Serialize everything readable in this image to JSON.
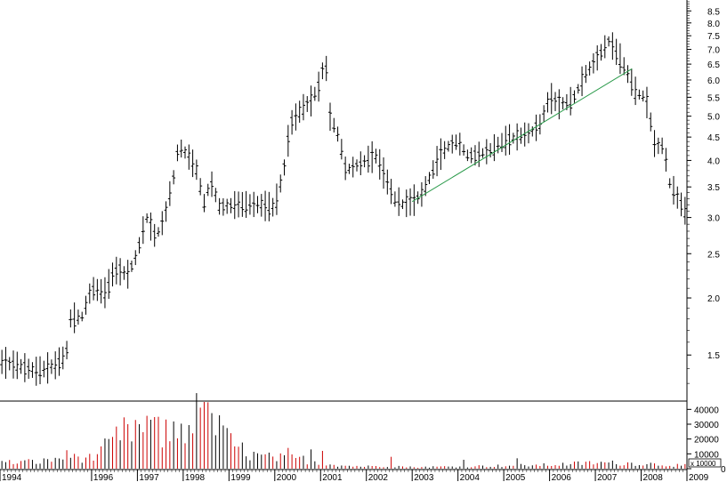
{
  "colors": {
    "background": "#ffffff",
    "price_bars": "#000000",
    "trendline": "#2a9a4a",
    "volume_bars": "#cc0000",
    "axis": "#000000"
  },
  "chart_data": [
    {
      "type": "ohlc",
      "scale": "log",
      "ylim": [
        1.2,
        8.9
      ],
      "xlim": [
        1994.0,
        2009.0
      ],
      "y_tick_labels": [
        "8.5",
        "8.0",
        "7.5",
        "7.0",
        "6.5",
        "6.0",
        "5.5",
        "5.0",
        "4.5",
        "4.0",
        "3.5",
        "3.0",
        "2.5",
        "2.0",
        "1.5"
      ],
      "y_tick_values": [
        8.5,
        8.0,
        7.5,
        7.0,
        6.5,
        6.0,
        5.5,
        5.0,
        4.5,
        4.0,
        3.5,
        3.0,
        2.5,
        2.0,
        1.5
      ],
      "x_tick_labels": [
        "1994",
        "1996",
        "1997",
        "1998",
        "1999",
        "2000",
        "2001",
        "2002",
        "2003",
        "2004",
        "2005",
        "2006",
        "2007",
        "2008",
        "2009"
      ],
      "x_tick_values": [
        1994,
        1996,
        1997,
        1998,
        1999,
        2000,
        2001,
        2002,
        2003,
        2004,
        2005,
        2006,
        2007,
        2008,
        2009
      ],
      "price_path": [
        [
          1994.0,
          1.45
        ],
        [
          1994.4,
          1.42
        ],
        [
          1994.8,
          1.38
        ],
        [
          1995.2,
          1.42
        ],
        [
          1995.45,
          1.5
        ],
        [
          1995.52,
          1.8
        ],
        [
          1995.8,
          1.82
        ],
        [
          1996.0,
          2.1
        ],
        [
          1996.3,
          2.05
        ],
        [
          1996.5,
          2.3
        ],
        [
          1996.8,
          2.25
        ],
        [
          1997.0,
          2.5
        ],
        [
          1997.2,
          3.0
        ],
        [
          1997.4,
          2.7
        ],
        [
          1997.6,
          3.0
        ],
        [
          1997.8,
          3.7
        ],
        [
          1997.9,
          4.3
        ],
        [
          1998.1,
          4.1
        ],
        [
          1998.3,
          3.8
        ],
        [
          1998.45,
          3.2
        ],
        [
          1998.6,
          3.6
        ],
        [
          1998.8,
          3.15
        ],
        [
          1999.2,
          3.2
        ],
        [
          1999.6,
          3.2
        ],
        [
          2000.0,
          3.15
        ],
        [
          2000.2,
          3.8
        ],
        [
          2000.35,
          4.8
        ],
        [
          2000.6,
          5.2
        ],
        [
          2000.8,
          5.4
        ],
        [
          2001.0,
          5.9
        ],
        [
          2001.1,
          6.8
        ],
        [
          2001.2,
          5.0
        ],
        [
          2001.4,
          4.5
        ],
        [
          2001.55,
          3.8
        ],
        [
          2001.8,
          3.9
        ],
        [
          2002.0,
          4.0
        ],
        [
          2002.2,
          4.1
        ],
        [
          2002.4,
          3.7
        ],
        [
          2002.6,
          3.3
        ],
        [
          2002.8,
          3.2
        ],
        [
          2003.0,
          3.25
        ],
        [
          2003.2,
          3.35
        ],
        [
          2003.4,
          3.7
        ],
        [
          2003.6,
          4.1
        ],
        [
          2003.8,
          4.3
        ],
        [
          2004.0,
          4.4
        ],
        [
          2004.2,
          4.1
        ],
        [
          2004.4,
          4.1
        ],
        [
          2004.7,
          4.2
        ],
        [
          2005.0,
          4.4
        ],
        [
          2005.3,
          4.5
        ],
        [
          2005.6,
          4.6
        ],
        [
          2005.8,
          4.8
        ],
        [
          2006.0,
          5.5
        ],
        [
          2006.2,
          5.3
        ],
        [
          2006.5,
          5.4
        ],
        [
          2006.8,
          6.2
        ],
        [
          2007.0,
          6.6
        ],
        [
          2007.3,
          7.3
        ],
        [
          2007.5,
          6.8
        ],
        [
          2007.7,
          6.2
        ],
        [
          2007.9,
          5.6
        ],
        [
          2008.1,
          5.5
        ],
        [
          2008.3,
          4.3
        ],
        [
          2008.5,
          4.3
        ],
        [
          2008.6,
          3.6
        ],
        [
          2008.8,
          3.3
        ],
        [
          2008.95,
          3.1
        ]
      ],
      "trendline": {
        "x": [
          2003.0,
          2007.8
        ],
        "y": [
          3.25,
          6.35
        ]
      }
    },
    {
      "type": "bar",
      "ylim": [
        0,
        45000
      ],
      "y_tick_labels": [
        "40000",
        "30000",
        "20000",
        "10000",
        "0"
      ],
      "y_tick_values": [
        40000,
        30000,
        20000,
        10000,
        0
      ],
      "unit_label": "x 10000",
      "volume_profile": [
        [
          1994.0,
          4000
        ],
        [
          1995.0,
          5000
        ],
        [
          1995.5,
          9000
        ],
        [
          1996.0,
          7000
        ],
        [
          1996.6,
          22000
        ],
        [
          1997.0,
          28000
        ],
        [
          1997.5,
          22000
        ],
        [
          1998.0,
          28000
        ],
        [
          1998.3,
          36000
        ],
        [
          1998.6,
          30000
        ],
        [
          1999.0,
          18000
        ],
        [
          1999.5,
          9000
        ],
        [
          2000.0,
          7000
        ],
        [
          2000.5,
          7000
        ],
        [
          2001.0,
          4000
        ],
        [
          2001.5,
          2000
        ],
        [
          2002.0,
          1500
        ],
        [
          2002.5,
          2000
        ],
        [
          2003.0,
          1000
        ],
        [
          2004.0,
          1500
        ],
        [
          2005.0,
          2000
        ],
        [
          2006.0,
          2500
        ],
        [
          2007.0,
          4000
        ],
        [
          2008.0,
          3500
        ],
        [
          2009.0,
          2000
        ]
      ],
      "volume_spikes": [
        [
          1996.2,
          15000
        ],
        [
          1996.4,
          20000
        ],
        [
          1997.05,
          30000
        ],
        [
          1997.25,
          33000
        ],
        [
          1997.45,
          35000
        ],
        [
          1998.45,
          45000
        ],
        [
          1998.75,
          36000
        ],
        [
          1999.15,
          15000
        ],
        [
          2000.25,
          14000
        ],
        [
          2000.75,
          13000
        ],
        [
          2001.0,
          12000
        ],
        [
          2002.55,
          8000
        ],
        [
          2004.1,
          6000
        ],
        [
          2005.25,
          7000
        ]
      ]
    }
  ]
}
